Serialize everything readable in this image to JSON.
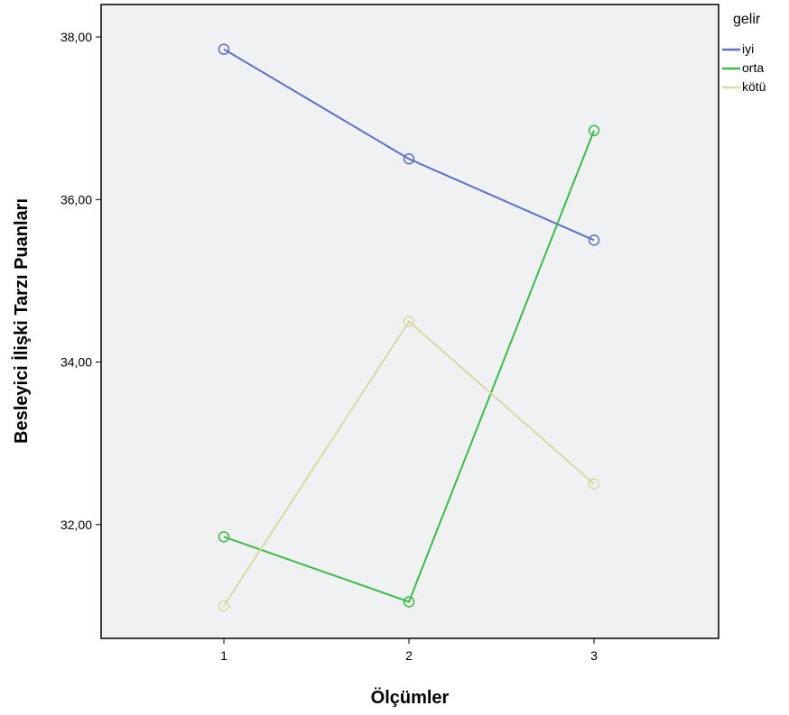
{
  "chart_data": {
    "type": "line",
    "title": "",
    "xlabel": "Ölçümler",
    "ylabel": "Besleyici İlişki Tarzı Puanları",
    "categories": [
      "1",
      "2",
      "3"
    ],
    "ylim": [
      30.6,
      38.4
    ],
    "yticks": [
      "32,00",
      "34,00",
      "36,00",
      "38,00"
    ],
    "ytick_values": [
      32,
      34,
      36,
      38
    ],
    "legend_title": "gelir",
    "legend_position": "right",
    "grid": false,
    "series": [
      {
        "name": "iyi",
        "color": "#5b6fc5",
        "values": [
          37.85,
          36.5,
          35.5
        ]
      },
      {
        "name": "orta",
        "color": "#3dbb4a",
        "values": [
          31.85,
          31.05,
          36.85
        ]
      },
      {
        "name": "kötü",
        "color": "#ddd7a4",
        "values": [
          31.0,
          34.5,
          32.5
        ]
      }
    ]
  }
}
